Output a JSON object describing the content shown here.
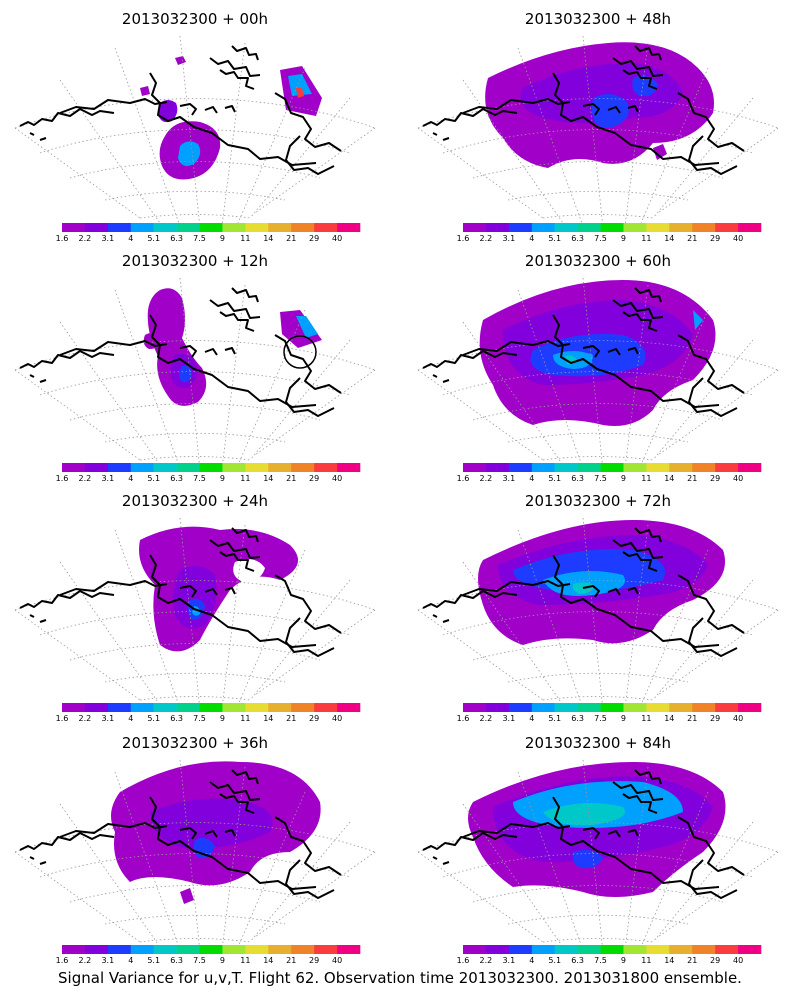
{
  "footer": "Signal Variance for u,v,T. Flight 62. Observation time 2013032300. 2013031800 ensemble.",
  "legend": {
    "colors": [
      "#a000c8",
      "#8200dc",
      "#1e3cff",
      "#00a0ff",
      "#00c8c8",
      "#00d28c",
      "#00dc00",
      "#a0e632",
      "#e6dc32",
      "#e6af2d",
      "#f08228",
      "#fa3c3c",
      "#f00082"
    ],
    "ticks": [
      "1.6",
      "2.2",
      "3.1",
      "4",
      "5.1",
      "6.3",
      "7.5",
      "9",
      "11",
      "14",
      "21",
      "29",
      "40"
    ]
  },
  "panels": [
    {
      "title": "2013032300 + 00h",
      "lead_hours": 0
    },
    {
      "title": "2013032300 + 48h",
      "lead_hours": 48
    },
    {
      "title": "2013032300 + 12h",
      "lead_hours": 12
    },
    {
      "title": "2013032300 + 60h",
      "lead_hours": 60
    },
    {
      "title": "2013032300 + 24h",
      "lead_hours": 24
    },
    {
      "title": "2013032300 + 72h",
      "lead_hours": 72
    },
    {
      "title": "2013032300 + 36h",
      "lead_hours": 36
    },
    {
      "title": "2013032300 + 84h",
      "lead_hours": 84
    }
  ]
}
